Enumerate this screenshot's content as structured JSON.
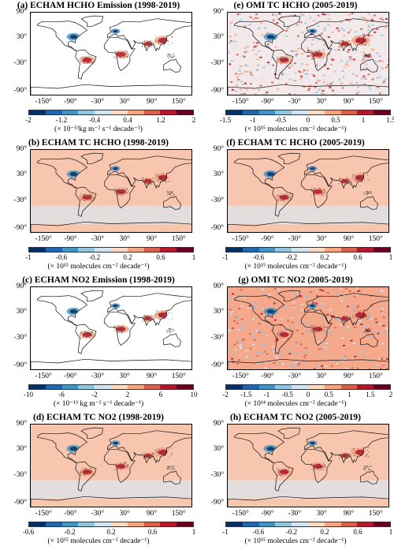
{
  "colors": [
    "#053061",
    "#2166ac",
    "#4393c3",
    "#92c5de",
    "#d1e5f0",
    "#fddbc7",
    "#f4a582",
    "#d6604d",
    "#b2182b",
    "#67001f"
  ],
  "lat_labels": [
    "90°",
    "30°",
    "-30°",
    "-90°"
  ],
  "lon_labels": [
    "-150°",
    "-90°",
    "-30°",
    "30°",
    "90°",
    "150°"
  ],
  "panels": [
    {
      "title": "(a) ECHAM HCHO Emission (1998-2019)",
      "ticks": [
        "-2",
        "-1.2",
        "-0.4",
        "0.4",
        "1.2",
        "2"
      ],
      "unit": "(× 10⁻¹³kg m⁻² s⁻¹ decade⁻¹)",
      "background": "#ffffff",
      "style": "emission"
    },
    {
      "title": "(e) OMI TC HCHO (2005-2019)",
      "ticks": [
        "-1.5",
        "-1",
        "-0.5",
        "0",
        "0.5",
        "1",
        "1.5"
      ],
      "unit": "(× 10¹⁵ molecules cm⁻² decade⁻¹)",
      "background": "#f3e8ea",
      "style": "noisy"
    },
    {
      "title": "(b) ECHAM TC HCHO (1998-2019)",
      "ticks": [
        "-1",
        "-0.6",
        "-0.2",
        "0.2",
        "0.6",
        "1"
      ],
      "unit": "(× 10¹⁵ molecules cm⁻² decade⁻¹)",
      "background": "#f8c6ae",
      "style": "model"
    },
    {
      "title": "(f) ECHAM TC HCHO (2005-2019)",
      "ticks": [
        "-1",
        "-0.6",
        "-0.2",
        "0.2",
        "0.6",
        "1"
      ],
      "unit": "(× 10¹⁵ molecules cm⁻² decade⁻¹)",
      "background": "#f8c6ae",
      "style": "model"
    },
    {
      "title": "(c) ECHAM NO2 Emission (1998-2019)",
      "ticks": [
        "-10",
        "-6",
        "-2",
        "2",
        "6",
        "10"
      ],
      "unit": "(× 10⁻¹³ kg m⁻² s⁻¹ decade⁻¹)",
      "background": "#ffffff",
      "style": "emission"
    },
    {
      "title": "(g) OMI TC NO2 (2005-2019)",
      "ticks": [
        "-2",
        "-1.5",
        "-1",
        "-0.5",
        "0",
        "0.5",
        "1",
        "1.5",
        "2"
      ],
      "unit": "(× 10¹⁴ molecules cm⁻² decade⁻¹)",
      "background": "#f4a88c",
      "style": "noisy"
    },
    {
      "title": "(d) ECHAM TC NO2 (1998-2019)",
      "ticks": [
        "-0.6",
        "-0.2",
        "0.2",
        "0.6",
        "1"
      ],
      "unit": "(× 10¹⁵ molecules cm⁻² decade⁻¹)",
      "background": "#f8c6ae",
      "style": "model"
    },
    {
      "title": "(h) ECHAM TC NO2 (2005-2019)",
      "ticks": [
        "-1",
        "-0.6",
        "-0.2",
        "0.2",
        "0.6",
        "1"
      ],
      "unit": "(× 10¹⁵ molecules cm⁻² decade⁻¹)",
      "background": "#f8c6ae",
      "style": "model"
    }
  ]
}
